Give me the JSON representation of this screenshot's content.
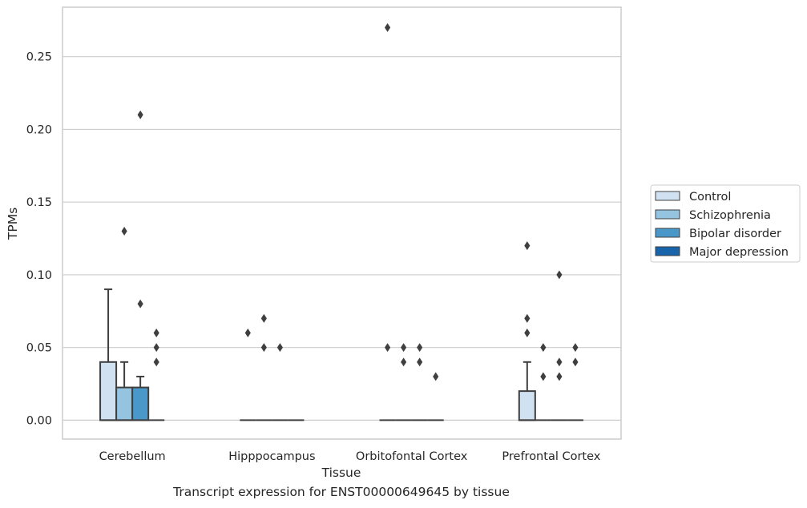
{
  "chart_data": {
    "type": "box",
    "title": "",
    "caption": "Transcript expression for ENST00000649645 by tissue",
    "xlabel": "Tissue",
    "ylabel": "TPMs",
    "ylim": [
      -0.013,
      0.284
    ],
    "yticks": [
      "0.00",
      "0.05",
      "0.10",
      "0.15",
      "0.20",
      "0.25"
    ],
    "ytick_values": [
      0,
      0.05,
      0.1,
      0.15,
      0.2,
      0.25
    ],
    "grid": true,
    "legend_position": "right",
    "categories": [
      "Cerebellum",
      "Hipppocampus",
      "Orbitofontal Cortex",
      "Prefrontal Cortex"
    ],
    "series": [
      {
        "name": "Control",
        "color": "#d0e1f2",
        "boxes": [
          {
            "q1": 0,
            "median": 0,
            "q3": 0.04,
            "whisker_low": 0,
            "whisker_high": 0.09,
            "outliers": []
          },
          {
            "q1": 0,
            "median": 0,
            "q3": 0,
            "whisker_low": 0,
            "whisker_high": 0,
            "outliers": [
              0.06
            ]
          },
          {
            "q1": 0,
            "median": 0,
            "q3": 0,
            "whisker_low": 0,
            "whisker_high": 0,
            "outliers": [
              0.27,
              0.05
            ]
          },
          {
            "q1": 0,
            "median": 0,
            "q3": 0.02,
            "whisker_low": 0,
            "whisker_high": 0.04,
            "outliers": [
              0.12,
              0.07,
              0.06
            ]
          }
        ]
      },
      {
        "name": "Schizophrenia",
        "color": "#94c4df",
        "boxes": [
          {
            "q1": 0,
            "median": 0,
            "q3": 0.0225,
            "whisker_low": 0,
            "whisker_high": 0.04,
            "outliers": [
              0.13
            ]
          },
          {
            "q1": 0,
            "median": 0,
            "q3": 0,
            "whisker_low": 0,
            "whisker_high": 0,
            "outliers": [
              0.07,
              0.05
            ]
          },
          {
            "q1": 0,
            "median": 0,
            "q3": 0,
            "whisker_low": 0,
            "whisker_high": 0,
            "outliers": [
              0.05,
              0.04
            ]
          },
          {
            "q1": 0,
            "median": 0,
            "q3": 0,
            "whisker_low": 0,
            "whisker_high": 0,
            "outliers": [
              0.05,
              0.03
            ]
          }
        ]
      },
      {
        "name": "Bipolar disorder",
        "color": "#4a98c9",
        "boxes": [
          {
            "q1": 0,
            "median": 0,
            "q3": 0.0225,
            "whisker_low": 0,
            "whisker_high": 0.03,
            "outliers": [
              0.21,
              0.08
            ]
          },
          {
            "q1": 0,
            "median": 0,
            "q3": 0,
            "whisker_low": 0,
            "whisker_high": 0,
            "outliers": [
              0.05
            ]
          },
          {
            "q1": 0,
            "median": 0,
            "q3": 0,
            "whisker_low": 0,
            "whisker_high": 0,
            "outliers": [
              0.05,
              0.04
            ]
          },
          {
            "q1": 0,
            "median": 0,
            "q3": 0,
            "whisker_low": 0,
            "whisker_high": 0,
            "outliers": [
              0.1,
              0.04,
              0.03
            ]
          }
        ]
      },
      {
        "name": "Major depression",
        "color": "#1764ab",
        "boxes": [
          {
            "q1": 0,
            "median": 0,
            "q3": 0,
            "whisker_low": 0,
            "whisker_high": 0,
            "outliers": [
              0.06,
              0.05,
              0.04
            ]
          },
          {
            "q1": 0,
            "median": 0,
            "q3": 0,
            "whisker_low": 0,
            "whisker_high": 0,
            "outliers": []
          },
          {
            "q1": 0,
            "median": 0,
            "q3": 0,
            "whisker_low": 0,
            "whisker_high": 0,
            "outliers": [
              0.03
            ]
          },
          {
            "q1": 0,
            "median": 0,
            "q3": 0,
            "whisker_low": 0,
            "whisker_high": 0,
            "outliers": [
              0.05,
              0.04
            ]
          }
        ]
      }
    ]
  }
}
